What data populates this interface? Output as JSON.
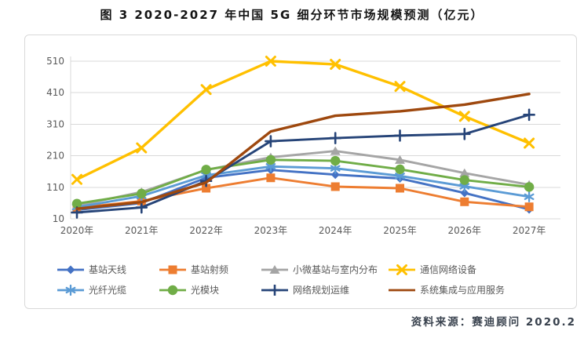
{
  "title": "图 3 2020-2027 年中国 5G 细分环节市场规模预测（亿元）",
  "source": "资料来源：赛迪顾问  2020.2",
  "colors": {
    "grid": "#d9d9d9",
    "axis_text": "#595959",
    "title_text": "#141414",
    "source_text": "#39424e"
  },
  "chart_data": {
    "type": "line",
    "title": "图 3 2020-2027 年中国 5G 细分环节市场规模预测（亿元）",
    "xlabel": "",
    "ylabel": "亿元",
    "ylim": [
      10,
      510
    ],
    "y_ticks": [
      10,
      110,
      210,
      310,
      410,
      510
    ],
    "grid": true,
    "legend_position": "bottom",
    "categories": [
      "2020年",
      "2021年",
      "2022年",
      "2023年",
      "2024年",
      "2025年",
      "2026年",
      "2027年"
    ],
    "series": [
      {
        "name": "基站天线",
        "color": "#4472C4",
        "marker": "diamond",
        "values": [
          38,
          60,
          140,
          165,
          150,
          138,
          92,
          40
        ]
      },
      {
        "name": "基站射频",
        "color": "#ED7D31",
        "marker": "square",
        "values": [
          45,
          66,
          107,
          140,
          112,
          107,
          64,
          48
        ]
      },
      {
        "name": "小微基站与室内分布",
        "color": "#A5A5A5",
        "marker": "triangle",
        "values": [
          52,
          95,
          165,
          205,
          225,
          197,
          155,
          118
        ]
      },
      {
        "name": "通信网络设备",
        "color": "#FFC000",
        "marker": "x",
        "values": [
          135,
          235,
          420,
          510,
          500,
          430,
          335,
          250
        ]
      },
      {
        "name": "光纤光缆",
        "color": "#5B9BD5",
        "marker": "asterisk",
        "values": [
          47,
          82,
          148,
          176,
          170,
          146,
          113,
          80
        ]
      },
      {
        "name": "光模块",
        "color": "#70AD47",
        "marker": "circle",
        "values": [
          58,
          90,
          166,
          197,
          194,
          167,
          133,
          111
        ]
      },
      {
        "name": "网络规划运维",
        "color": "#264478",
        "marker": "plus",
        "values": [
          30,
          46,
          130,
          256,
          266,
          274,
          279,
          340
        ]
      },
      {
        "name": "系统集成与应用服务",
        "color": "#9E480E",
        "marker": "none",
        "values": [
          42,
          63,
          125,
          287,
          337,
          351,
          372,
          406
        ]
      }
    ]
  }
}
